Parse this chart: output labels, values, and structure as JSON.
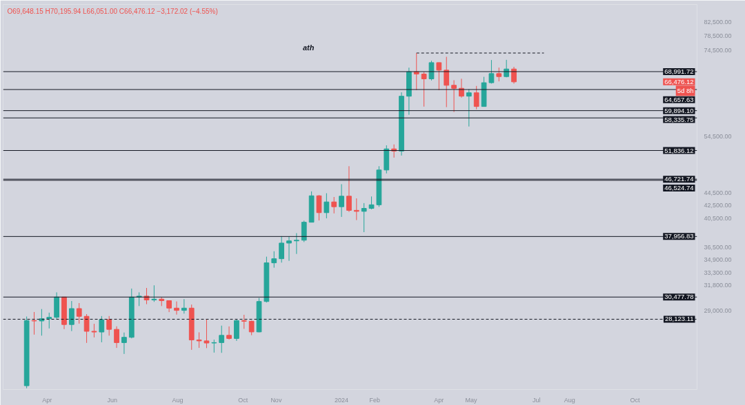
{
  "chart_data": {
    "type": "candlestick",
    "subtitle": "O69,648.15 H70,195.94 L66,051.00 C66,476.12 −3,172.02 (−4.55%)",
    "x": [
      "2023-03-13",
      "2023-03-20",
      "2023-03-27",
      "2023-04-03",
      "2023-04-10",
      "2023-04-17",
      "2023-04-24",
      "2023-05-01",
      "2023-05-08",
      "2023-05-15",
      "2023-05-22",
      "2023-05-29",
      "2023-06-05",
      "2023-06-12",
      "2023-06-19",
      "2023-06-26",
      "2023-07-03",
      "2023-07-10",
      "2023-07-17",
      "2023-07-24",
      "2023-07-31",
      "2023-08-07",
      "2023-08-14",
      "2023-08-21",
      "2023-08-28",
      "2023-09-04",
      "2023-09-11",
      "2023-09-18",
      "2023-09-25",
      "2023-10-02",
      "2023-10-09",
      "2023-10-16",
      "2023-10-23",
      "2023-10-30",
      "2023-11-06",
      "2023-11-13",
      "2023-11-20",
      "2023-11-27",
      "2023-12-04",
      "2023-12-11",
      "2023-12-18",
      "2023-12-25",
      "2024-01-01",
      "2024-01-08",
      "2024-01-15",
      "2024-01-22",
      "2024-01-29",
      "2024-02-05",
      "2024-02-12",
      "2024-02-19",
      "2024-02-26",
      "2024-03-04",
      "2024-03-11",
      "2024-03-18",
      "2024-03-25",
      "2024-04-01",
      "2024-04-08",
      "2024-04-15",
      "2024-04-22",
      "2024-04-29",
      "2024-05-06",
      "2024-05-13",
      "2024-05-20",
      "2024-05-27",
      "2024-06-03",
      "2024-06-10"
    ],
    "ohlc": [
      [
        22100,
        28400,
        21900,
        27990
      ],
      [
        27990,
        28870,
        26600,
        27950
      ],
      [
        27950,
        29180,
        26500,
        28170
      ],
      [
        28170,
        28800,
        27200,
        28320
      ],
      [
        28320,
        31000,
        28170,
        30480
      ],
      [
        30480,
        30500,
        27130,
        27590
      ],
      [
        27590,
        30040,
        26940,
        29230
      ],
      [
        29230,
        29820,
        27680,
        28420
      ],
      [
        28420,
        28650,
        25810,
        26920
      ],
      [
        26920,
        27660,
        26330,
        26850
      ],
      [
        26850,
        28450,
        25870,
        28080
      ],
      [
        28080,
        28450,
        26500,
        27110
      ],
      [
        27110,
        27410,
        25350,
        25840
      ],
      [
        25840,
        26800,
        24800,
        26340
      ],
      [
        26340,
        31430,
        26240,
        30470
      ],
      [
        30470,
        31000,
        29500,
        30580
      ],
      [
        30580,
        31500,
        29700,
        30160
      ],
      [
        30160,
        31800,
        29950,
        30250
      ],
      [
        30250,
        30440,
        29500,
        30080
      ],
      [
        30080,
        30100,
        28860,
        29280
      ],
      [
        29280,
        30000,
        28600,
        29040
      ],
      [
        29040,
        30250,
        28700,
        29280
      ],
      [
        29280,
        29660,
        25170,
        26090
      ],
      [
        26090,
        26820,
        25350,
        26000
      ],
      [
        26000,
        28150,
        25330,
        25800
      ],
      [
        25800,
        26120,
        24920,
        25840
      ],
      [
        25840,
        27480,
        24900,
        26530
      ],
      [
        26530,
        27400,
        26130,
        26230
      ],
      [
        26230,
        28100,
        26000,
        27980
      ],
      [
        27980,
        28580,
        27160,
        27920
      ],
      [
        27920,
        27990,
        26540,
        26860
      ],
      [
        26860,
        30380,
        26820,
        29990
      ],
      [
        29990,
        35280,
        29880,
        34500
      ],
      [
        34500,
        35980,
        33900,
        35020
      ],
      [
        35020,
        38000,
        34530,
        37060
      ],
      [
        37060,
        37980,
        34750,
        37360
      ],
      [
        37360,
        38420,
        35630,
        37450
      ],
      [
        37450,
        40200,
        37200,
        39970
      ],
      [
        39970,
        44700,
        39970,
        43990
      ],
      [
        43990,
        44100,
        40230,
        41380
      ],
      [
        41380,
        44400,
        40540,
        43020
      ],
      [
        43020,
        43800,
        41270,
        42280
      ],
      [
        42280,
        45880,
        40750,
        43930
      ],
      [
        43930,
        48970,
        41500,
        41730
      ],
      [
        41730,
        43580,
        40280,
        41580
      ],
      [
        41580,
        42840,
        38560,
        42030
      ],
      [
        42030,
        43880,
        41880,
        42580
      ],
      [
        42580,
        48970,
        42260,
        48300
      ],
      [
        48300,
        52820,
        47710,
        52140
      ],
      [
        52140,
        52990,
        50520,
        51730
      ],
      [
        51730,
        64000,
        50900,
        63110
      ],
      [
        63110,
        69990,
        59000,
        68960
      ],
      [
        68960,
        73800,
        64530,
        68390
      ],
      [
        68390,
        68920,
        60780,
        67210
      ],
      [
        67210,
        71770,
        66810,
        71280
      ],
      [
        71280,
        71340,
        64490,
        69360
      ],
      [
        69360,
        72800,
        60660,
        65660
      ],
      [
        65660,
        66870,
        59600,
        64940
      ],
      [
        64940,
        67230,
        62790,
        63120
      ],
      [
        63120,
        64730,
        56550,
        63900
      ],
      [
        63900,
        65500,
        60190,
        60800
      ],
      [
        60800,
        67700,
        60750,
        66270
      ],
      [
        66270,
        71950,
        66060,
        68500
      ],
      [
        68500,
        70000,
        66600,
        67760
      ],
      [
        67760,
        72000,
        67580,
        69650
      ],
      [
        69648.15,
        70195.94,
        66051.0,
        66476.12
      ]
    ],
    "colors": [
      "#26a69a",
      "#ef5350",
      "#26a69a",
      "#26a69a",
      "#26a69a",
      "#ef5350",
      "#26a69a",
      "#ef5350",
      "#ef5350",
      "#ef5350",
      "#26a69a",
      "#ef5350",
      "#ef5350",
      "#26a69a",
      "#26a69a",
      "#26a69a",
      "#ef5350",
      "#26a69a",
      "#ef5350",
      "#ef5350",
      "#ef5350",
      "#26a69a",
      "#ef5350",
      "#ef5350",
      "#ef5350",
      "#26a69a",
      "#26a69a",
      "#ef5350",
      "#26a69a",
      "#ef5350",
      "#ef5350",
      "#26a69a",
      "#26a69a",
      "#26a69a",
      "#26a69a",
      "#26a69a",
      "#26a69a",
      "#26a69a",
      "#26a69a",
      "#ef5350",
      "#26a69a",
      "#ef5350",
      "#26a69a",
      "#ef5350",
      "#ef5350",
      "#26a69a",
      "#26a69a",
      "#26a69a",
      "#26a69a",
      "#ef5350",
      "#26a69a",
      "#26a69a",
      "#ef5350",
      "#ef5350",
      "#26a69a",
      "#ef5350",
      "#ef5350",
      "#ef5350",
      "#ef5350",
      "#26a69a",
      "#ef5350",
      "#26a69a",
      "#26a69a",
      "#ef5350",
      "#26a69a",
      "#ef5350"
    ],
    "series": [
      {
        "type": "line",
        "x": [
          "2024-03-11",
          "2024-07-08"
        ],
        "values": [
          73800,
          73800
        ],
        "color": "#131722",
        "line_style": "dashed"
      }
    ],
    "log": "y",
    "ylim": [
      21800,
      88000
    ],
    "yticks": [
      {
        "value": 82500,
        "label": "82,500.00"
      },
      {
        "value": 78500,
        "label": "78,500.00"
      },
      {
        "value": 74500,
        "label": "74,500.00"
      },
      {
        "value": 54500,
        "label": "54,500.00"
      },
      {
        "value": 44500,
        "label": "44,500.00"
      },
      {
        "value": 42500,
        "label": "42,500.00"
      },
      {
        "value": 40500,
        "label": "40,500.00"
      },
      {
        "value": 36500,
        "label": "36,500.00"
      },
      {
        "value": 34900,
        "label": "34,900.00"
      },
      {
        "value": 33300,
        "label": "33,300.00"
      },
      {
        "value": 31800,
        "label": "31,800.00"
      },
      {
        "value": 29000,
        "label": "29,000.00"
      }
    ],
    "xlim": [
      "2023-02-19",
      "2024-11-28"
    ],
    "xticks": [
      {
        "value": "2023-04-01",
        "label": "Apr"
      },
      {
        "value": "2023-06-01",
        "label": "Jun"
      },
      {
        "value": "2023-08-01",
        "label": "Aug"
      },
      {
        "value": "2023-10-01",
        "label": "Oct"
      },
      {
        "value": "2023-11-01",
        "label": "Nov"
      },
      {
        "value": "2024-01-01",
        "label": "2024"
      },
      {
        "value": "2024-02-01",
        "label": "Feb"
      },
      {
        "value": "2024-04-01",
        "label": "Apr"
      },
      {
        "value": "2024-05-01",
        "label": "May"
      },
      {
        "value": "2024-07-01",
        "label": "Jul"
      },
      {
        "value": "2024-08-01",
        "label": "Aug"
      },
      {
        "value": "2024-10-01",
        "label": "Oct"
      }
    ],
    "ref_lines": [
      {
        "axis": "y",
        "value": 68991.72,
        "label": "68,991.72",
        "color": "#131722"
      },
      {
        "axis": "y",
        "value": 64657.63,
        "label": "64,657.63",
        "color": "#131722"
      },
      {
        "axis": "y",
        "value": 59894.1,
        "label": "59,894.10",
        "color": "#131722"
      },
      {
        "axis": "y",
        "value": 58335.75,
        "label": "58,335.75",
        "color": "#131722"
      },
      {
        "axis": "y",
        "value": 51836.12,
        "label": "51,836.12",
        "color": "#131722"
      },
      {
        "axis": "y",
        "value": 46721.74,
        "label": "46,721.74",
        "color": "#131722"
      },
      {
        "axis": "y",
        "value": 46524.74,
        "label": "46,524.74",
        "color": "#131722"
      },
      {
        "axis": "y",
        "value": 37956.83,
        "label": "37,956.83",
        "color": "#131722"
      },
      {
        "axis": "y",
        "value": 30477.78,
        "label": "30,477.78",
        "color": "#131722"
      },
      {
        "axis": "y",
        "value": 28123.11,
        "label": "28,123.11",
        "color": "#131722",
        "line_style": "dashed"
      }
    ],
    "annotations": [
      "ath",
      "66,476.12",
      "5d 8h"
    ]
  }
}
